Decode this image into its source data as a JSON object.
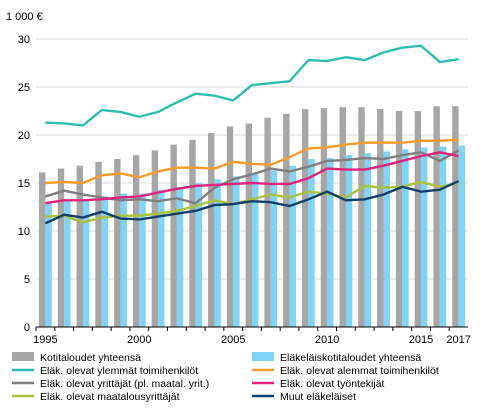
{
  "chart_data": {
    "type": "bar",
    "unit_label": "1 000 €",
    "x": [
      1995,
      1996,
      1997,
      1998,
      1999,
      2000,
      2001,
      2002,
      2003,
      2004,
      2005,
      2006,
      2007,
      2008,
      2009,
      2010,
      2011,
      2012,
      2013,
      2014,
      2015,
      2016,
      2017
    ],
    "x_tick_labels": [
      {
        "year": 1995,
        "label": "1995"
      },
      {
        "year": 2000,
        "label": "2000"
      },
      {
        "year": 2005,
        "label": "2005"
      },
      {
        "year": 2010,
        "label": "2010"
      },
      {
        "year": 2015,
        "label": "2015"
      },
      {
        "year": 2017,
        "label": "2017"
      }
    ],
    "y_ticks": [
      {
        "value": 0,
        "label": "0"
      },
      {
        "value": 5,
        "label": "5"
      },
      {
        "value": 10,
        "label": "10"
      },
      {
        "value": 15,
        "label": "15"
      },
      {
        "value": 20,
        "label": "20"
      },
      {
        "value": 25,
        "label": "25"
      },
      {
        "value": 30,
        "label": "30"
      }
    ],
    "ylim": [
      0,
      30
    ],
    "grid": true,
    "legend_position": "bottom",
    "bar_series": [
      {
        "name": "Kotitaloudet yhteensä",
        "color": "#a6a6a6",
        "values": [
          16.1,
          16.5,
          16.8,
          17.2,
          17.5,
          17.9,
          18.4,
          19.0,
          19.5,
          20.2,
          20.9,
          21.2,
          21.8,
          22.2,
          22.7,
          22.8,
          22.9,
          22.9,
          22.7,
          22.5,
          22.5,
          23.0,
          23.0
        ]
      },
      {
        "name": "Eläkeläiskotitaloudet yhteensä",
        "color": "#7fd4f7",
        "values": [
          13.0,
          13.2,
          13.3,
          13.6,
          13.9,
          13.9,
          14.3,
          14.6,
          15.0,
          15.4,
          15.7,
          15.9,
          16.3,
          16.8,
          17.5,
          17.6,
          17.9,
          18.1,
          18.3,
          18.5,
          18.7,
          18.8,
          18.9
        ]
      }
    ],
    "line_series": [
      {
        "name": "Eläk. olevat ylemmät toimihenkilöt",
        "color": "#2dbdb0",
        "values": [
          21.3,
          21.2,
          21.0,
          22.6,
          22.4,
          21.9,
          22.4,
          23.4,
          24.3,
          24.1,
          23.6,
          25.2,
          25.4,
          25.6,
          27.8,
          27.7,
          28.1,
          27.8,
          28.6,
          29.1,
          29.3,
          27.6,
          27.9
        ]
      },
      {
        "name": "Eläk. olevat alemmat toimihenkilöt",
        "color": "#f39c2c",
        "values": [
          15.0,
          15.1,
          15.0,
          15.8,
          16.0,
          15.6,
          16.2,
          16.6,
          16.6,
          16.5,
          17.2,
          17.0,
          16.9,
          17.7,
          18.6,
          18.7,
          19.0,
          19.2,
          19.2,
          19.2,
          19.4,
          19.4,
          19.5
        ]
      },
      {
        "name": "Eläk. olevat yrittäjät (pl. maatal. yrit.)",
        "color": "#7f7f7f",
        "values": [
          13.6,
          14.2,
          13.8,
          13.5,
          13.2,
          13.3,
          13.1,
          13.4,
          12.9,
          14.5,
          15.4,
          15.9,
          16.5,
          16.2,
          16.7,
          17.3,
          17.4,
          17.6,
          17.5,
          17.9,
          18.2,
          17.3,
          18.4
        ]
      },
      {
        "name": "Eläk. olevat työntekijät",
        "color": "#e0237e",
        "values": [
          12.9,
          13.2,
          13.2,
          13.3,
          13.5,
          13.6,
          14.0,
          14.4,
          14.7,
          14.8,
          14.9,
          15.0,
          14.9,
          14.9,
          15.5,
          16.5,
          16.4,
          16.4,
          16.8,
          17.3,
          17.8,
          18.2,
          17.8
        ]
      },
      {
        "name": "Eläk. olevat maatalousyrittäjät",
        "color": "#a8c23c",
        "values": [
          11.5,
          11.6,
          10.9,
          11.4,
          11.6,
          11.6,
          11.8,
          12.1,
          12.6,
          13.2,
          12.8,
          13.3,
          13.8,
          13.5,
          14.1,
          13.9,
          13.5,
          14.7,
          14.5,
          14.6,
          15.1,
          14.6,
          15.0
        ]
      },
      {
        "name": "Muut eläkeläiset",
        "color": "#13406b",
        "values": [
          10.8,
          11.7,
          11.4,
          12.0,
          11.3,
          11.2,
          11.5,
          11.8,
          12.1,
          12.7,
          12.8,
          13.1,
          13.0,
          12.6,
          13.3,
          14.1,
          13.2,
          13.3,
          13.8,
          14.6,
          14.1,
          14.3,
          15.2
        ]
      }
    ]
  }
}
